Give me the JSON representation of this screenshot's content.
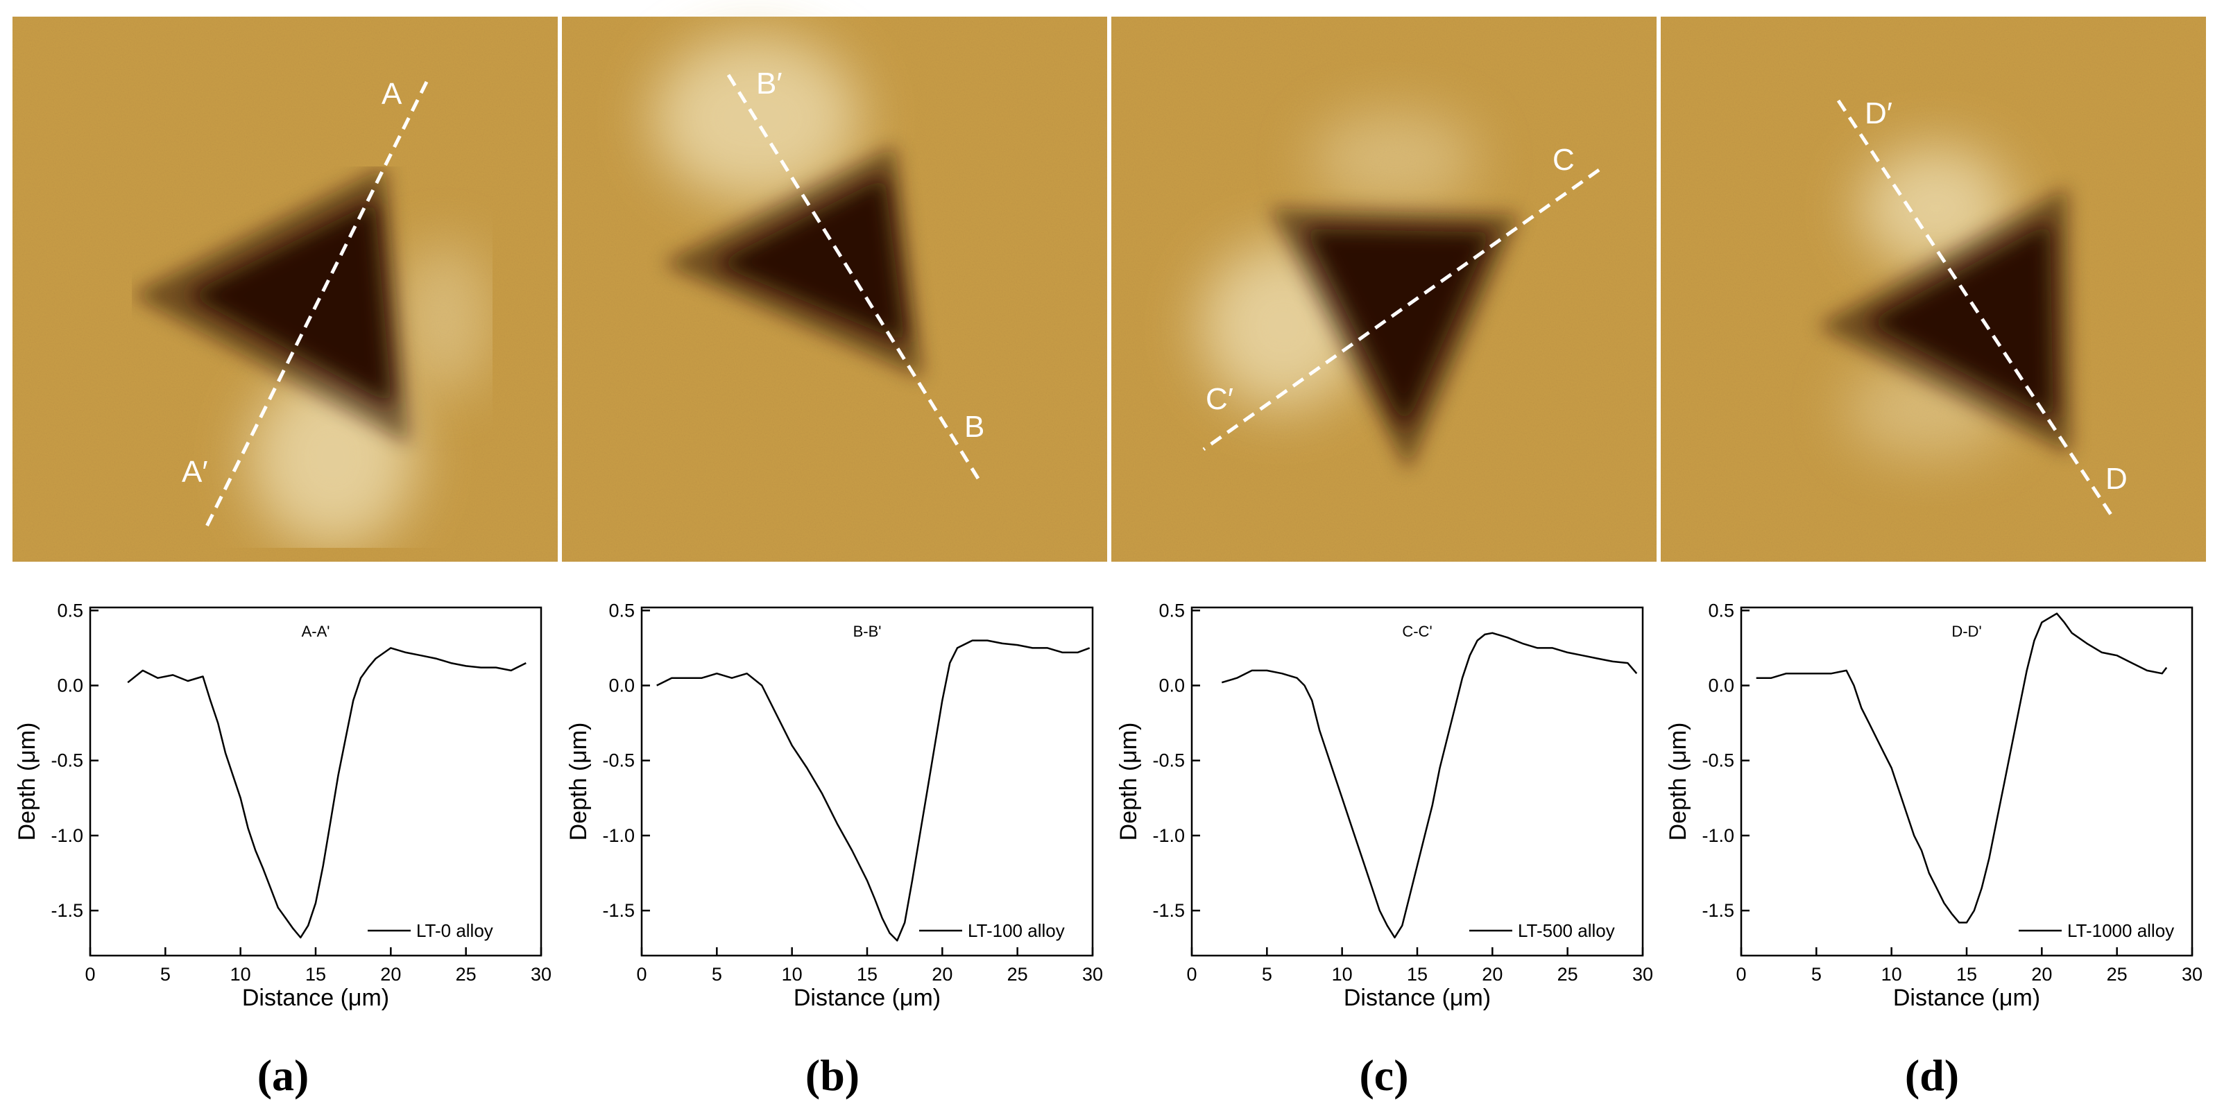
{
  "figure": {
    "panels": [
      {
        "label": "(a)",
        "image": {
          "marker_start": "A",
          "marker_end": "A′",
          "colors": {
            "surface": "#c89c46",
            "pit": "#2a0c02",
            "pileup": "#ead8a8",
            "line": "#ffffff"
          }
        },
        "chart": {
          "type": "line",
          "title": "A-A'",
          "legend": "LT-0 alloy",
          "xlabel": "Distance (μm)",
          "ylabel": "Depth (μm)",
          "xticks": [
            "0",
            "5",
            "10",
            "15",
            "20",
            "25",
            "30"
          ],
          "yticks": [
            "0.5",
            "0.0",
            "-0.5",
            "-1.0",
            "-1.5"
          ],
          "xlim": [
            0,
            30
          ],
          "ylim": [
            -1.8,
            0.52
          ],
          "series": [
            {
              "name": "LT-0 alloy",
              "x": [
                2.5,
                3.5,
                4.5,
                5.5,
                6.5,
                7.5,
                8.0,
                8.5,
                9.0,
                9.5,
                10.0,
                10.5,
                11.0,
                11.5,
                12.0,
                12.5,
                13.0,
                13.5,
                14.0,
                14.5,
                15.0,
                15.5,
                16.0,
                16.5,
                17.0,
                17.5,
                18.0,
                18.5,
                19.0,
                20.0,
                21.0,
                22.0,
                23.0,
                24.0,
                25.0,
                26.0,
                27.0,
                28.0,
                29.0
              ],
              "y": [
                0.02,
                0.1,
                0.05,
                0.07,
                0.03,
                0.06,
                -0.1,
                -0.25,
                -0.45,
                -0.6,
                -0.75,
                -0.95,
                -1.1,
                -1.22,
                -1.35,
                -1.48,
                -1.55,
                -1.62,
                -1.68,
                -1.6,
                -1.45,
                -1.2,
                -0.9,
                -0.6,
                -0.35,
                -0.1,
                0.05,
                0.12,
                0.18,
                0.25,
                0.22,
                0.2,
                0.18,
                0.15,
                0.13,
                0.12,
                0.12,
                0.1,
                0.15
              ]
            }
          ]
        }
      },
      {
        "label": "(b)",
        "image": {
          "marker_start": "B",
          "marker_end": "B′",
          "colors": {
            "surface": "#c89c46",
            "pit": "#2a0c02",
            "pileup": "#ead8a8",
            "line": "#ffffff"
          }
        },
        "chart": {
          "type": "line",
          "title": "B-B'",
          "legend": "LT-100 alloy",
          "xlabel": "Distance (μm)",
          "ylabel": "Depth (μm)",
          "xticks": [
            "0",
            "5",
            "10",
            "15",
            "20",
            "25",
            "30"
          ],
          "yticks": [
            "0.5",
            "0.0",
            "-0.5",
            "-1.0",
            "-1.5"
          ],
          "xlim": [
            0,
            30
          ],
          "ylim": [
            -1.8,
            0.52
          ],
          "series": [
            {
              "name": "LT-100 alloy",
              "x": [
                1.0,
                2.0,
                3.0,
                4.0,
                5.0,
                6.0,
                7.0,
                8.0,
                9.0,
                10.0,
                11.0,
                12.0,
                13.0,
                14.0,
                15.0,
                15.5,
                16.0,
                16.5,
                17.0,
                17.5,
                18.0,
                18.5,
                19.0,
                19.5,
                20.0,
                20.5,
                21.0,
                22.0,
                23.0,
                24.0,
                25.0,
                26.0,
                27.0,
                28.0,
                29.0,
                29.8
              ],
              "y": [
                0.0,
                0.05,
                0.05,
                0.05,
                0.08,
                0.05,
                0.08,
                0.0,
                -0.2,
                -0.4,
                -0.55,
                -0.72,
                -0.92,
                -1.1,
                -1.3,
                -1.42,
                -1.55,
                -1.65,
                -1.7,
                -1.58,
                -1.3,
                -1.0,
                -0.7,
                -0.4,
                -0.1,
                0.15,
                0.25,
                0.3,
                0.3,
                0.28,
                0.27,
                0.25,
                0.25,
                0.22,
                0.22,
                0.25
              ]
            }
          ]
        }
      },
      {
        "label": "(c)",
        "image": {
          "marker_start": "C",
          "marker_end": "C′",
          "colors": {
            "surface": "#c89c46",
            "pit": "#2a0c02",
            "pileup": "#ead8a8",
            "line": "#ffffff"
          }
        },
        "chart": {
          "type": "line",
          "title": "C-C'",
          "legend": "LT-500 alloy",
          "xlabel": "Distance (μm)",
          "ylabel": "Depth (μm)",
          "xticks": [
            "0",
            "5",
            "10",
            "15",
            "20",
            "25",
            "30"
          ],
          "yticks": [
            "0.5",
            "0.0",
            "-0.5",
            "-1.0",
            "-1.5"
          ],
          "xlim": [
            0,
            30
          ],
          "ylim": [
            -1.8,
            0.52
          ],
          "series": [
            {
              "name": "LT-500 alloy",
              "x": [
                2.0,
                3.0,
                4.0,
                5.0,
                6.0,
                7.0,
                7.5,
                8.0,
                8.5,
                9.0,
                9.5,
                10.0,
                10.5,
                11.0,
                11.5,
                12.0,
                12.5,
                13.0,
                13.5,
                14.0,
                14.5,
                15.0,
                15.5,
                16.0,
                16.5,
                17.0,
                17.5,
                18.0,
                18.5,
                19.0,
                19.5,
                20.0,
                21.0,
                22.0,
                23.0,
                24.0,
                25.0,
                26.0,
                27.0,
                28.0,
                29.0,
                29.6
              ],
              "y": [
                0.02,
                0.05,
                0.1,
                0.1,
                0.08,
                0.05,
                0.0,
                -0.1,
                -0.3,
                -0.45,
                -0.6,
                -0.75,
                -0.9,
                -1.05,
                -1.2,
                -1.35,
                -1.5,
                -1.6,
                -1.68,
                -1.6,
                -1.4,
                -1.2,
                -1.0,
                -0.8,
                -0.55,
                -0.35,
                -0.15,
                0.05,
                0.2,
                0.3,
                0.34,
                0.35,
                0.32,
                0.28,
                0.25,
                0.25,
                0.22,
                0.2,
                0.18,
                0.16,
                0.15,
                0.08
              ]
            }
          ]
        }
      },
      {
        "label": "(d)",
        "image": {
          "marker_start": "D",
          "marker_end": "D′",
          "colors": {
            "surface": "#c89c46",
            "pit": "#2a0c02",
            "pileup": "#ead8a8",
            "line": "#ffffff"
          }
        },
        "chart": {
          "type": "line",
          "title": "D-D'",
          "legend": "LT-1000 alloy",
          "xlabel": "Distance (μm)",
          "ylabel": "Depth (μm)",
          "xticks": [
            "0",
            "5",
            "10",
            "15",
            "20",
            "25",
            "30"
          ],
          "yticks": [
            "0.5",
            "0.0",
            "-0.5",
            "-1.0",
            "-1.5"
          ],
          "xlim": [
            0,
            30
          ],
          "ylim": [
            -1.8,
            0.52
          ],
          "series": [
            {
              "name": "LT-1000 alloy",
              "x": [
                1.0,
                2.0,
                3.0,
                4.0,
                5.0,
                6.0,
                7.0,
                7.5,
                8.0,
                8.5,
                9.0,
                9.5,
                10.0,
                10.5,
                11.0,
                11.5,
                12.0,
                12.5,
                13.0,
                13.5,
                14.0,
                14.5,
                15.0,
                15.5,
                16.0,
                16.5,
                17.0,
                17.5,
                18.0,
                18.5,
                19.0,
                19.5,
                20.0,
                20.5,
                21.0,
                21.5,
                22.0,
                23.0,
                24.0,
                25.0,
                26.0,
                27.0,
                28.0,
                28.3
              ],
              "y": [
                0.05,
                0.05,
                0.08,
                0.08,
                0.08,
                0.08,
                0.1,
                0.0,
                -0.15,
                -0.25,
                -0.35,
                -0.45,
                -0.55,
                -0.7,
                -0.85,
                -1.0,
                -1.1,
                -1.25,
                -1.35,
                -1.45,
                -1.52,
                -1.58,
                -1.58,
                -1.5,
                -1.35,
                -1.15,
                -0.9,
                -0.65,
                -0.4,
                -0.15,
                0.1,
                0.3,
                0.42,
                0.45,
                0.48,
                0.42,
                0.35,
                0.28,
                0.22,
                0.2,
                0.15,
                0.1,
                0.08,
                0.12
              ]
            }
          ]
        }
      }
    ]
  }
}
